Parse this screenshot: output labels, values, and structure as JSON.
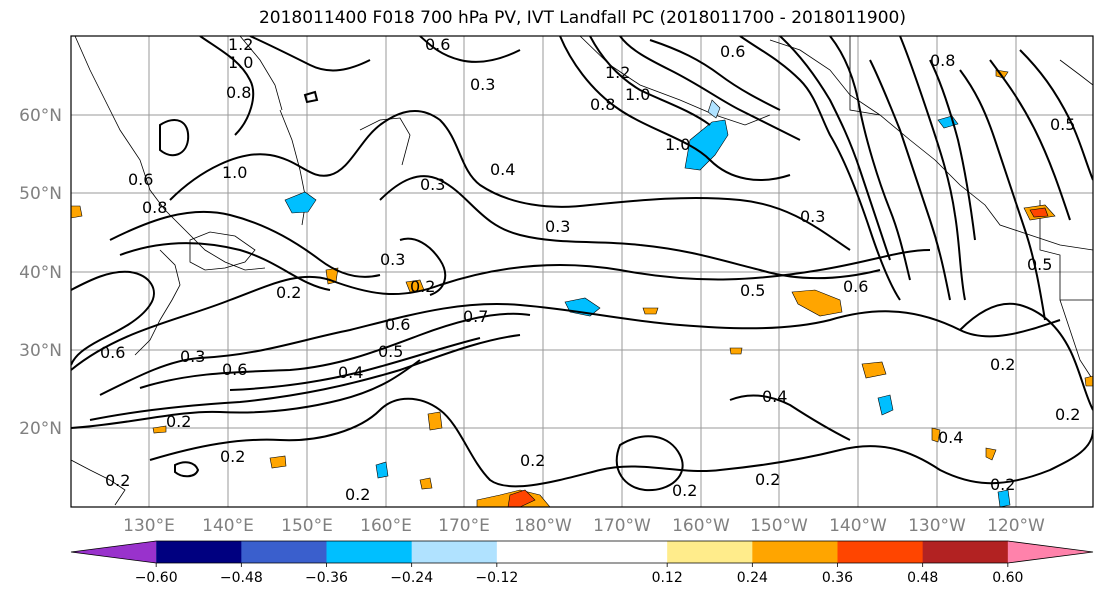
{
  "title": "2018011400 F018 700 hPa PV, IVT Landfall PC (2018011700 - 2018011900)",
  "lat_labels": [
    "60°N",
    "50°N",
    "40°N",
    "30°N",
    "20°N"
  ],
  "lon_labels": [
    "130°E",
    "140°E",
    "150°E",
    "160°E",
    "170°E",
    "180°W",
    "170°W",
    "160°W",
    "150°W",
    "140°W",
    "130°W",
    "120°W"
  ],
  "colorbar": {
    "colors": [
      "#9932cc",
      "#000080",
      "#3a5fcd",
      "#00bfff",
      "#b0e2ff",
      "#ffffff",
      "#ffffff",
      "#ffec8b",
      "#ffa500",
      "#ff4500",
      "#b22222",
      "#ff82ab"
    ],
    "tick_labels": [
      "−0.60",
      "−0.48",
      "−0.36",
      "−0.24",
      "−0.12",
      "0.12",
      "0.24",
      "0.36",
      "0.48",
      "0.60"
    ]
  },
  "contour_labels": [
    "1.2",
    "0.6",
    "1.0",
    "0.8",
    "0.6",
    "1.0",
    "0.8",
    "0.6",
    "0.8",
    "0.3",
    "0.4",
    "1.0",
    "0.2",
    "0.6",
    "0.3",
    "0.2",
    "0.3",
    "0.6",
    "0.7",
    "0.5",
    "0.4",
    "0.6",
    "0.3",
    "0.2",
    "0.5",
    "0.6",
    "0.5",
    "0.3",
    "0.2",
    "0.4",
    "0.2",
    "0.2",
    "0.2",
    "0.2",
    "0.2",
    "0.4",
    "0.2",
    "0.2",
    "0.2",
    "1.2",
    "1.0",
    "0.8",
    "0.3",
    "0.5"
  ]
}
